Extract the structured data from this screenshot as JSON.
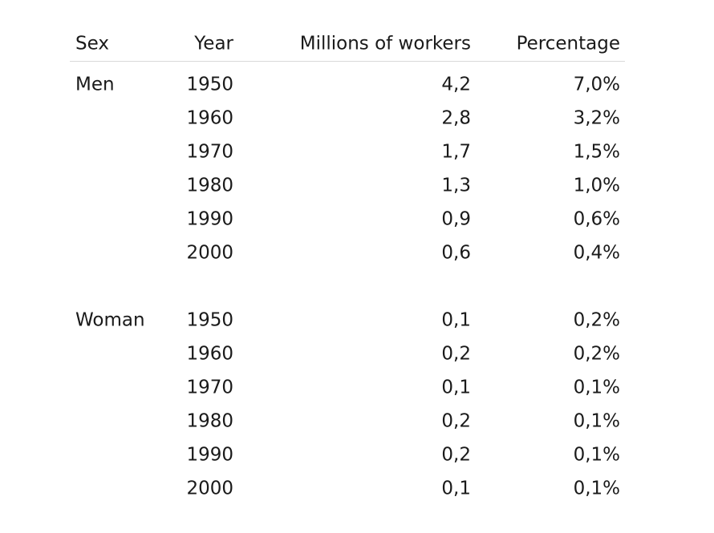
{
  "header": {
    "sex": "Sex",
    "year": "Year",
    "millions": "Millions of workers",
    "percentage": "Percentage"
  },
  "groups": [
    {
      "sex": "Men",
      "rows": [
        {
          "year": "1950",
          "millions": "4,2",
          "percentage": "7,0%"
        },
        {
          "year": "1960",
          "millions": "2,8",
          "percentage": "3,2%"
        },
        {
          "year": "1970",
          "millions": "1,7",
          "percentage": "1,5%"
        },
        {
          "year": "1980",
          "millions": "1,3",
          "percentage": "1,0%"
        },
        {
          "year": "1990",
          "millions": "0,9",
          "percentage": "0,6%"
        },
        {
          "year": "2000",
          "millions": "0,6",
          "percentage": "0,4%"
        }
      ]
    },
    {
      "sex": "Woman",
      "rows": [
        {
          "year": "1950",
          "millions": "0,1",
          "percentage": "0,2%"
        },
        {
          "year": "1960",
          "millions": "0,2",
          "percentage": "0,2%"
        },
        {
          "year": "1970",
          "millions": "0,1",
          "percentage": "0,1%"
        },
        {
          "year": "1980",
          "millions": "0,2",
          "percentage": "0,1%"
        },
        {
          "year": "1990",
          "millions": "0,2",
          "percentage": "0,1%"
        },
        {
          "year": "2000",
          "millions": "0,1",
          "percentage": "0,1%"
        }
      ]
    }
  ]
}
